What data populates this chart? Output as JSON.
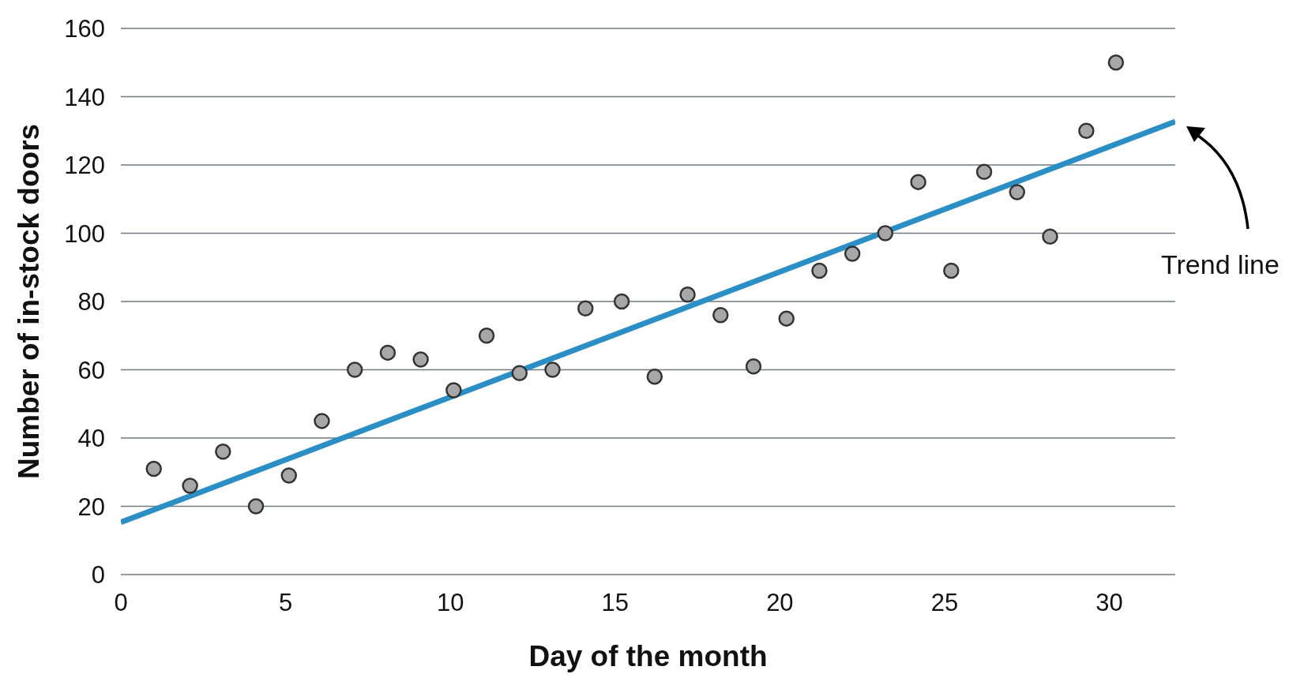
{
  "chart_data": {
    "type": "scatter",
    "xlabel": "Day of the month",
    "ylabel": "Number of in-stock doors",
    "xlim": [
      0,
      32
    ],
    "xticks": [
      0,
      5,
      10,
      15,
      20,
      25,
      30
    ],
    "ylim": [
      0,
      160
    ],
    "yticks": [
      0,
      20,
      40,
      60,
      80,
      100,
      120,
      140,
      160
    ],
    "grid": "y",
    "annotations": [
      "Trend line"
    ],
    "series": [
      {
        "marker": "circle",
        "color": "#a7a7aa",
        "x": [
          1.0,
          2.1,
          3.1,
          4.1,
          5.1,
          6.1,
          7.1,
          8.1,
          9.1,
          10.1,
          11.1,
          12.1,
          13.1,
          14.1,
          15.2,
          16.2,
          17.2,
          18.2,
          19.2,
          20.2,
          21.2,
          22.2,
          23.2,
          24.2,
          25.2,
          26.2,
          27.2,
          28.2,
          29.3,
          30.2
        ],
        "values": [
          31,
          26,
          36,
          20,
          29,
          45,
          60,
          65,
          63,
          54,
          70,
          59,
          60,
          78,
          80,
          58,
          82,
          76,
          61,
          75,
          89,
          94,
          100,
          115,
          89,
          118,
          112,
          99,
          130,
          150
        ]
      },
      {
        "type": "line",
        "marker": "none",
        "color": "#2b8ec4",
        "x": [
          0,
          32
        ],
        "values": [
          15.3,
          132.7
        ]
      }
    ]
  }
}
